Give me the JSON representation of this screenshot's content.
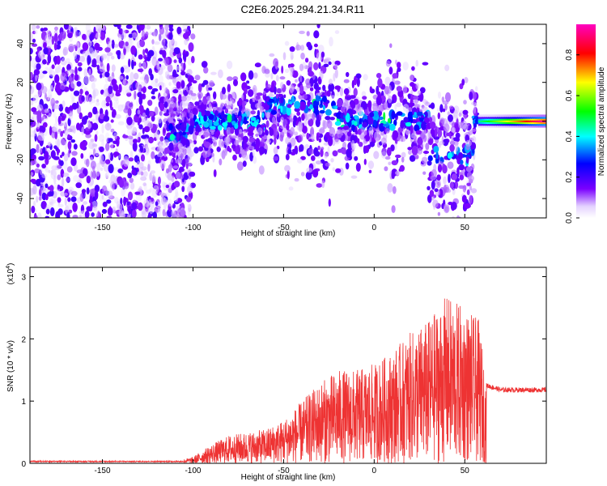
{
  "chart_data": [
    {
      "type": "heatmap",
      "title": "C2E6.2025.294.21.34.R11",
      "xlabel": "Height of straight line (km)",
      "ylabel": "Frequency (Hz)",
      "xlim": [
        -190,
        95
      ],
      "ylim": [
        -50,
        50
      ],
      "xticks": [
        -150,
        -100,
        -50,
        0,
        50
      ],
      "yticks": [
        -40,
        -20,
        0,
        20,
        40
      ],
      "colorbar": {
        "label": "Normalized spectral amplitude",
        "range": [
          0,
          0.95
        ],
        "ticks": [
          "0.0",
          "0.2",
          "0.4",
          "0.6",
          "0.8"
        ],
        "colormap": "rainbow"
      },
      "features": {
        "noise_region_km": [
          -190,
          -100
        ],
        "main_band_center_hz": 0,
        "strong_tone_km": [
          58,
          95
        ]
      }
    },
    {
      "type": "line",
      "xlabel": "Height of straight line (km)",
      "ylabel": "SNR (10 * v/v)",
      "scale_label": "(x10",
      "scale_exp": "4",
      "scale_close": ")",
      "xlim": [
        -190,
        95
      ],
      "ylim": [
        0,
        3.15
      ],
      "xticks": [
        -150,
        -100,
        -50,
        0,
        50
      ],
      "yticks": [
        0,
        1,
        2,
        3
      ],
      "color": "#ee3333",
      "envelope": {
        "x": [
          -190,
          -110,
          -100,
          -90,
          -80,
          -70,
          -60,
          -50,
          -40,
          -30,
          -20,
          -10,
          0,
          10,
          20,
          30,
          40,
          50,
          58,
          62,
          70,
          80,
          95
        ],
        "y": [
          0.03,
          0.04,
          0.1,
          0.3,
          0.45,
          0.5,
          0.55,
          0.7,
          1.0,
          1.3,
          1.5,
          1.5,
          1.6,
          1.8,
          2.1,
          2.3,
          2.7,
          2.5,
          2.3,
          1.25,
          1.18,
          1.18,
          1.18
        ]
      }
    }
  ]
}
